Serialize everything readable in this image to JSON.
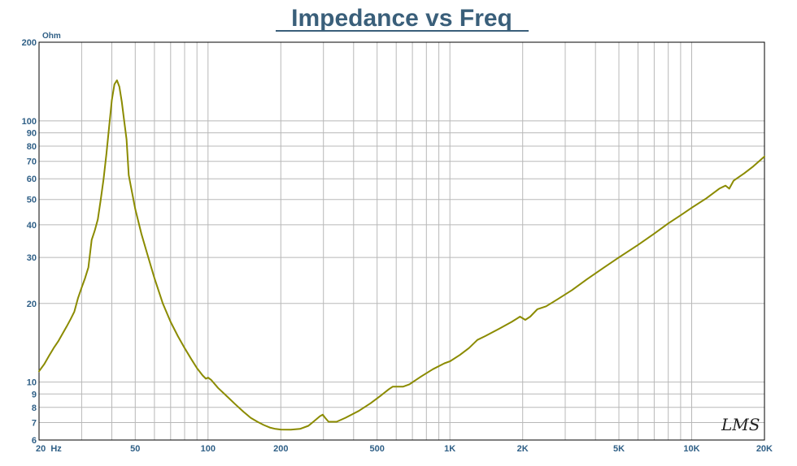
{
  "chart_data": {
    "type": "line",
    "title": "Impedance vs Freq",
    "ylabel": "Ohm",
    "xlabel": "",
    "x_scale": "log",
    "y_scale": "log",
    "xlim": [
      20,
      20000
    ],
    "ylim": [
      6,
      200
    ],
    "grid": true,
    "x_ticks": [
      {
        "value": 20,
        "label": "20  Hz"
      },
      {
        "value": 50,
        "label": "50"
      },
      {
        "value": 100,
        "label": "100"
      },
      {
        "value": 200,
        "label": "200"
      },
      {
        "value": 500,
        "label": "500"
      },
      {
        "value": 1000,
        "label": "1K"
      },
      {
        "value": 2000,
        "label": "2K"
      },
      {
        "value": 5000,
        "label": "5K"
      },
      {
        "value": 10000,
        "label": "10K"
      },
      {
        "value": 20000,
        "label": "20K"
      }
    ],
    "y_ticks": [
      {
        "value": 6,
        "label": "6"
      },
      {
        "value": 7,
        "label": "7"
      },
      {
        "value": 8,
        "label": "8"
      },
      {
        "value": 9,
        "label": "9"
      },
      {
        "value": 10,
        "label": "10"
      },
      {
        "value": 20,
        "label": "20"
      },
      {
        "value": 30,
        "label": "30"
      },
      {
        "value": 40,
        "label": "40"
      },
      {
        "value": 50,
        "label": "50"
      },
      {
        "value": 60,
        "label": "60"
      },
      {
        "value": 70,
        "label": "70"
      },
      {
        "value": 80,
        "label": "80"
      },
      {
        "value": 90,
        "label": "90"
      },
      {
        "value": 100,
        "label": "100"
      },
      {
        "value": 200,
        "label": "200"
      }
    ],
    "series": [
      {
        "color": "#8b8b00",
        "points": [
          [
            20,
            11.0
          ],
          [
            21,
            11.7
          ],
          [
            22,
            12.6
          ],
          [
            23,
            13.5
          ],
          [
            24,
            14.3
          ],
          [
            25,
            15.3
          ],
          [
            26,
            16.3
          ],
          [
            27,
            17.4
          ],
          [
            28,
            18.6
          ],
          [
            29,
            21.0
          ],
          [
            30,
            23.0
          ],
          [
            31,
            25.0
          ],
          [
            32,
            27.5
          ],
          [
            33,
            35.0
          ],
          [
            34,
            38.0
          ],
          [
            35,
            42.0
          ],
          [
            36,
            50.0
          ],
          [
            37,
            60.0
          ],
          [
            38,
            75.0
          ],
          [
            39,
            95.0
          ],
          [
            40,
            120.0
          ],
          [
            41,
            138.0
          ],
          [
            42,
            143.0
          ],
          [
            43,
            135.0
          ],
          [
            44,
            118.0
          ],
          [
            45,
            100.0
          ],
          [
            46,
            85.0
          ],
          [
            47,
            62.0
          ],
          [
            48,
            56.0
          ],
          [
            50,
            46.0
          ],
          [
            53,
            37.0
          ],
          [
            56,
            31.0
          ],
          [
            60,
            25.0
          ],
          [
            65,
            20.0
          ],
          [
            70,
            17.0
          ],
          [
            75,
            15.0
          ],
          [
            80,
            13.5
          ],
          [
            85,
            12.3
          ],
          [
            90,
            11.3
          ],
          [
            95,
            10.6
          ],
          [
            98,
            10.3
          ],
          [
            100,
            10.4
          ],
          [
            103,
            10.2
          ],
          [
            110,
            9.5
          ],
          [
            120,
            8.8
          ],
          [
            130,
            8.2
          ],
          [
            140,
            7.7
          ],
          [
            150,
            7.3
          ],
          [
            160,
            7.05
          ],
          [
            170,
            6.85
          ],
          [
            180,
            6.7
          ],
          [
            190,
            6.62
          ],
          [
            200,
            6.58
          ],
          [
            220,
            6.57
          ],
          [
            240,
            6.62
          ],
          [
            260,
            6.8
          ],
          [
            275,
            7.1
          ],
          [
            290,
            7.4
          ],
          [
            298,
            7.5
          ],
          [
            305,
            7.3
          ],
          [
            315,
            7.05
          ],
          [
            340,
            7.05
          ],
          [
            370,
            7.3
          ],
          [
            420,
            7.75
          ],
          [
            470,
            8.3
          ],
          [
            520,
            8.9
          ],
          [
            560,
            9.4
          ],
          [
            580,
            9.6
          ],
          [
            640,
            9.6
          ],
          [
            680,
            9.8
          ],
          [
            760,
            10.5
          ],
          [
            850,
            11.2
          ],
          [
            950,
            11.8
          ],
          [
            1000,
            12.0
          ],
          [
            1100,
            12.7
          ],
          [
            1200,
            13.5
          ],
          [
            1300,
            14.5
          ],
          [
            1400,
            15.0
          ],
          [
            1600,
            16.0
          ],
          [
            1800,
            17.0
          ],
          [
            1950,
            17.8
          ],
          [
            2050,
            17.3
          ],
          [
            2150,
            17.8
          ],
          [
            2300,
            19.0
          ],
          [
            2500,
            19.5
          ],
          [
            2800,
            20.8
          ],
          [
            3200,
            22.5
          ],
          [
            3700,
            24.8
          ],
          [
            4300,
            27.3
          ],
          [
            5000,
            30.0
          ],
          [
            6000,
            33.5
          ],
          [
            7000,
            37.0
          ],
          [
            8000,
            40.5
          ],
          [
            9000,
            43.5
          ],
          [
            10000,
            46.5
          ],
          [
            11500,
            50.5
          ],
          [
            13000,
            55.0
          ],
          [
            13800,
            56.5
          ],
          [
            14300,
            55.0
          ],
          [
            14900,
            59.0
          ],
          [
            16500,
            63.0
          ],
          [
            18000,
            67.0
          ],
          [
            20000,
            73.0
          ]
        ]
      }
    ]
  },
  "watermark": "LMS"
}
